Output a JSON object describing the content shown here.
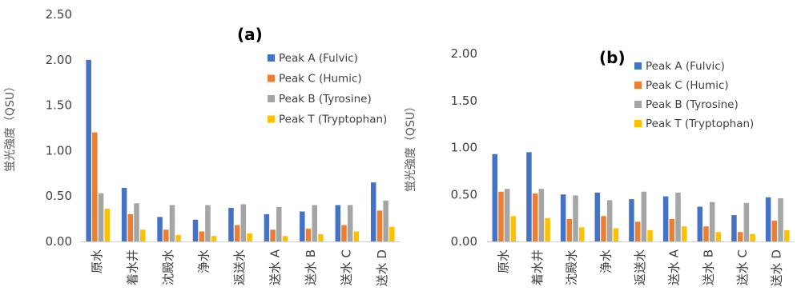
{
  "chart_data": [
    {
      "type": "bar",
      "panel_label": "(a)",
      "ylabel": "蛍光強度（QSU）",
      "ylim": [
        0,
        2.5
      ],
      "yticks": [
        "0.00",
        "0.50",
        "1.00",
        "1.50",
        "2.00",
        "2.50"
      ],
      "legend_position": "top-right",
      "categories": [
        "原水",
        "着水井",
        "沈殿水",
        "浄水",
        "返送水",
        "送水 A",
        "送水 B",
        "送水 C",
        "送水 D"
      ],
      "series": [
        {
          "name": "Peak A (Fulvic)",
          "color": "#4472C4",
          "values": [
            2.0,
            0.59,
            0.27,
            0.24,
            0.37,
            0.3,
            0.33,
            0.4,
            0.65
          ]
        },
        {
          "name": "Peak C (Humic)",
          "color": "#ED7D31",
          "values": [
            1.2,
            0.3,
            0.13,
            0.11,
            0.18,
            0.13,
            0.14,
            0.18,
            0.34
          ]
        },
        {
          "name": "Peak B (Tyrosine)",
          "color": "#A5A5A5",
          "values": [
            0.53,
            0.42,
            0.4,
            0.4,
            0.41,
            0.38,
            0.4,
            0.4,
            0.45
          ]
        },
        {
          "name": "Peak T (Tryptophan)",
          "color": "#FFC000",
          "values": [
            0.36,
            0.13,
            0.07,
            0.06,
            0.09,
            0.06,
            0.08,
            0.11,
            0.16
          ]
        }
      ]
    },
    {
      "type": "bar",
      "panel_label": "(b)",
      "ylabel": "蛍光強度（QSU）",
      "ylim": [
        0,
        2.0
      ],
      "yticks": [
        "0.00",
        "0.50",
        "1.00",
        "1.50",
        "2.00"
      ],
      "legend_position": "top-right",
      "categories": [
        "原水",
        "着水井",
        "沈殿水",
        "浄水",
        "返送水",
        "送水 A",
        "送水 B",
        "送水 C",
        "送水 D"
      ],
      "series": [
        {
          "name": "Peak A (Fulvic)",
          "color": "#4472C4",
          "values": [
            0.93,
            0.95,
            0.5,
            0.52,
            0.45,
            0.48,
            0.37,
            0.28,
            0.47
          ]
        },
        {
          "name": "Peak C (Humic)",
          "color": "#ED7D31",
          "values": [
            0.53,
            0.51,
            0.24,
            0.27,
            0.21,
            0.24,
            0.16,
            0.1,
            0.22
          ]
        },
        {
          "name": "Peak B (Tyrosine)",
          "color": "#A5A5A5",
          "values": [
            0.56,
            0.56,
            0.49,
            0.44,
            0.53,
            0.52,
            0.42,
            0.41,
            0.46
          ]
        },
        {
          "name": "Peak T (Tryptophan)",
          "color": "#FFC000",
          "values": [
            0.27,
            0.25,
            0.15,
            0.14,
            0.12,
            0.16,
            0.1,
            0.08,
            0.12
          ]
        }
      ]
    }
  ]
}
